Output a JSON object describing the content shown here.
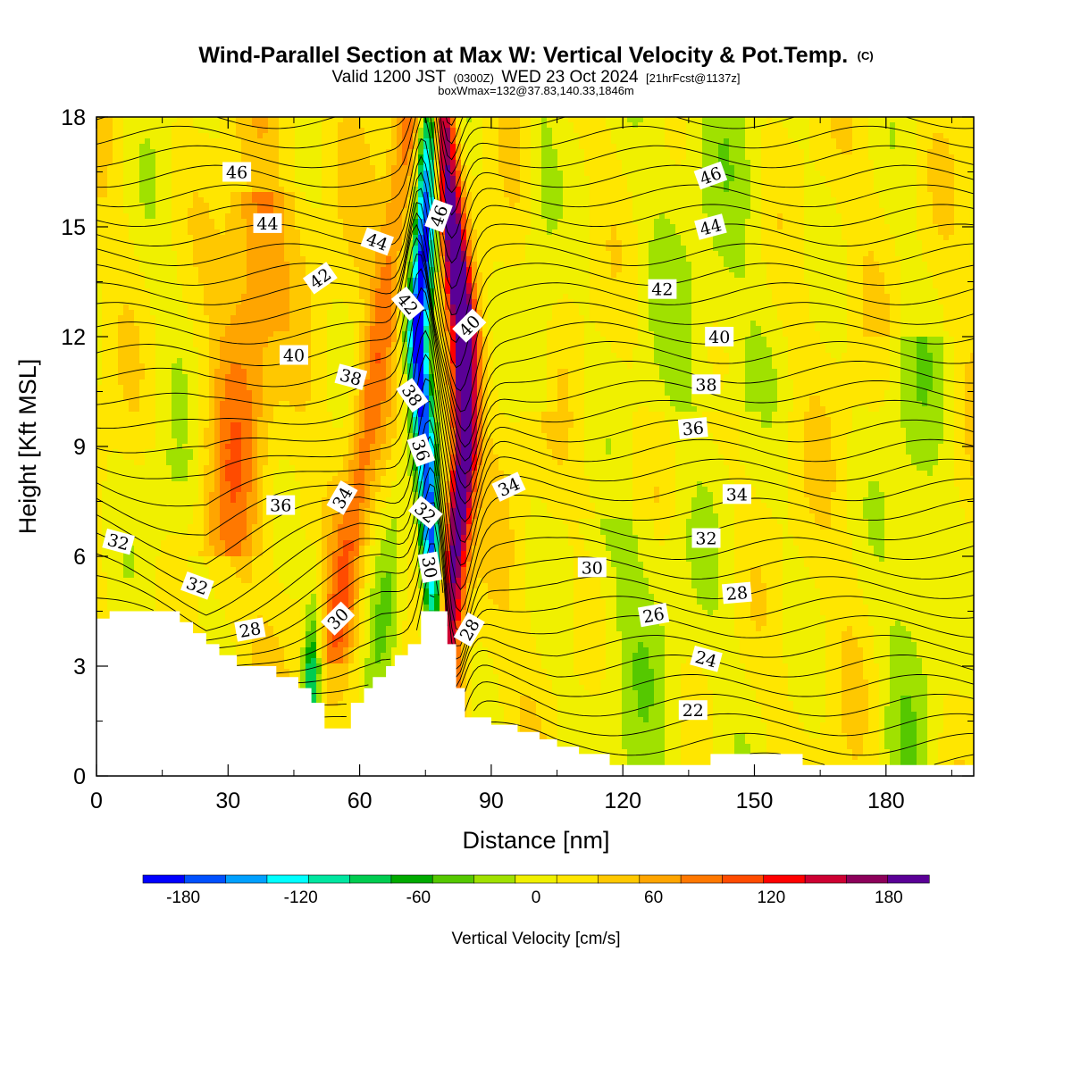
{
  "titles": {
    "main": "Wind-Parallel Section at Max W: Vertical Velocity & Pot.Temp.",
    "copyright": "(C)",
    "valid_prefix": "Valid 1200 JST",
    "valid_z": "(0300Z)",
    "valid_date": "WED 23 Oct 2024",
    "valid_fcst": "[21hrFcst@1137z]",
    "box_info": "boxWmax=132@37.83,140.33,1846m"
  },
  "chart_data": {
    "type": "heatmap",
    "xlabel": "Distance [nm]",
    "ylabel": "Height [Kft MSL]",
    "xlim": [
      0,
      200
    ],
    "ylim": [
      0,
      18
    ],
    "x_ticks": [
      "0",
      "30",
      "60",
      "90",
      "120",
      "150",
      "180"
    ],
    "y_ticks": [
      "0",
      "3",
      "6",
      "9",
      "12",
      "15",
      "18"
    ],
    "colorbar": {
      "label": "Vertical Velocity [cm/s]",
      "ticks": [
        "-180",
        "-120",
        "-60",
        "0",
        "60",
        "120",
        "180"
      ],
      "levels": [
        -200,
        -180,
        -160,
        -140,
        -120,
        -100,
        -80,
        -60,
        -40,
        -20,
        0,
        20,
        40,
        60,
        80,
        100,
        120,
        140,
        160,
        180,
        200
      ],
      "colors": [
        "#0000ff",
        "#0050ff",
        "#00a0ff",
        "#00ffff",
        "#00e6a0",
        "#00cc50",
        "#00aa00",
        "#55c800",
        "#a0e100",
        "#f0f000",
        "#ffe600",
        "#ffc800",
        "#ffa500",
        "#ff7800",
        "#ff4b00",
        "#ff0000",
        "#cd0032",
        "#8c005a",
        "#5a0096"
      ]
    },
    "terrain": [
      [
        0,
        4.3
      ],
      [
        3,
        4.3
      ],
      [
        3,
        4.5
      ],
      [
        19,
        4.5
      ],
      [
        19,
        4.2
      ],
      [
        22,
        4.2
      ],
      [
        22,
        3.9
      ],
      [
        25,
        3.9
      ],
      [
        25,
        3.6
      ],
      [
        28,
        3.6
      ],
      [
        28,
        3.3
      ],
      [
        32,
        3.3
      ],
      [
        32,
        3.0
      ],
      [
        41,
        3.0
      ],
      [
        41,
        2.7
      ],
      [
        46,
        2.7
      ],
      [
        46,
        2.4
      ],
      [
        49,
        2.4
      ],
      [
        49,
        2.0
      ],
      [
        52,
        2.0
      ],
      [
        52,
        1.3
      ],
      [
        58,
        1.3
      ],
      [
        58,
        2.0
      ],
      [
        61,
        2.0
      ],
      [
        61,
        2.4
      ],
      [
        63,
        2.4
      ],
      [
        63,
        2.7
      ],
      [
        66,
        2.7
      ],
      [
        66,
        3.0
      ],
      [
        68,
        3.0
      ],
      [
        68,
        3.3
      ],
      [
        71,
        3.3
      ],
      [
        71,
        3.6
      ],
      [
        74,
        3.6
      ],
      [
        74,
        4.5
      ],
      [
        80,
        4.5
      ],
      [
        80,
        3.6
      ],
      [
        82,
        3.6
      ],
      [
        82,
        2.4
      ],
      [
        84,
        2.4
      ],
      [
        84,
        1.6
      ],
      [
        90,
        1.6
      ],
      [
        90,
        1.4
      ],
      [
        96,
        1.4
      ],
      [
        96,
        1.2
      ],
      [
        101,
        1.2
      ],
      [
        101,
        1.0
      ],
      [
        105,
        1.0
      ],
      [
        105,
        0.8
      ],
      [
        110,
        0.8
      ],
      [
        110,
        0.6
      ],
      [
        117,
        0.6
      ],
      [
        117,
        0.3
      ],
      [
        140,
        0.3
      ],
      [
        140,
        0.6
      ],
      [
        161,
        0.6
      ],
      [
        161,
        0.3
      ],
      [
        200,
        0.3
      ]
    ],
    "isentrope_levels": [
      22,
      24,
      26,
      28,
      30,
      32,
      34,
      36,
      38,
      40,
      42,
      44,
      46
    ],
    "isentrope_labels": [
      {
        "text": "46",
        "x": 32,
        "y": 16.5,
        "rot": 0
      },
      {
        "text": "44",
        "x": 39,
        "y": 15.1,
        "rot": 0
      },
      {
        "text": "42",
        "x": 51,
        "y": 13.6,
        "rot": -35
      },
      {
        "text": "40",
        "x": 45,
        "y": 11.5,
        "rot": 0
      },
      {
        "text": "38",
        "x": 58,
        "y": 10.9,
        "rot": 15
      },
      {
        "text": "36",
        "x": 42,
        "y": 7.4,
        "rot": 0
      },
      {
        "text": "34",
        "x": 56,
        "y": 7.6,
        "rot": -60
      },
      {
        "text": "32",
        "x": 5,
        "y": 6.4,
        "rot": 15
      },
      {
        "text": "32",
        "x": 23,
        "y": 5.2,
        "rot": 20
      },
      {
        "text": "28",
        "x": 35,
        "y": 4.0,
        "rot": -10
      },
      {
        "text": "30",
        "x": 55,
        "y": 4.3,
        "rot": -45
      },
      {
        "text": "44",
        "x": 64,
        "y": 14.6,
        "rot": 20
      },
      {
        "text": "42",
        "x": 71,
        "y": 12.9,
        "rot": 50
      },
      {
        "text": "38",
        "x": 72,
        "y": 10.4,
        "rot": 55
      },
      {
        "text": "36",
        "x": 74,
        "y": 8.9,
        "rot": 70
      },
      {
        "text": "32",
        "x": 75,
        "y": 7.2,
        "rot": 40
      },
      {
        "text": "30",
        "x": 76,
        "y": 5.7,
        "rot": 80
      },
      {
        "text": "46",
        "x": 78,
        "y": 15.3,
        "rot": -70
      },
      {
        "text": "40",
        "x": 85,
        "y": 12.3,
        "rot": -45
      },
      {
        "text": "28",
        "x": 85,
        "y": 4.0,
        "rot": -60
      },
      {
        "text": "34",
        "x": 94,
        "y": 7.9,
        "rot": -25
      },
      {
        "text": "30",
        "x": 113,
        "y": 5.7,
        "rot": 0
      },
      {
        "text": "26",
        "x": 127,
        "y": 4.4,
        "rot": -10
      },
      {
        "text": "24",
        "x": 139,
        "y": 3.2,
        "rot": 15
      },
      {
        "text": "22",
        "x": 136,
        "y": 1.8,
        "rot": 0
      },
      {
        "text": "46",
        "x": 140,
        "y": 16.4,
        "rot": -20
      },
      {
        "text": "44",
        "x": 140,
        "y": 15.0,
        "rot": -15
      },
      {
        "text": "42",
        "x": 129,
        "y": 13.3,
        "rot": 0
      },
      {
        "text": "40",
        "x": 142,
        "y": 12.0,
        "rot": 0
      },
      {
        "text": "38",
        "x": 139,
        "y": 10.7,
        "rot": 0
      },
      {
        "text": "36",
        "x": 136,
        "y": 9.5,
        "rot": -5
      },
      {
        "text": "34",
        "x": 146,
        "y": 7.7,
        "rot": 0
      },
      {
        "text": "32",
        "x": 139,
        "y": 6.5,
        "rot": 0
      },
      {
        "text": "28",
        "x": 146,
        "y": 5.0,
        "rot": -5
      }
    ],
    "features": {
      "downdraft_axis": [
        [
          77,
          4.5
        ],
        [
          75,
          9
        ],
        [
          73,
          12
        ],
        [
          75,
          15
        ],
        [
          76,
          18
        ]
      ],
      "updraft_axis": [
        [
          80,
          3.6
        ],
        [
          84,
          9
        ],
        [
          84,
          12
        ],
        [
          81,
          15
        ],
        [
          79,
          18
        ]
      ]
    }
  }
}
